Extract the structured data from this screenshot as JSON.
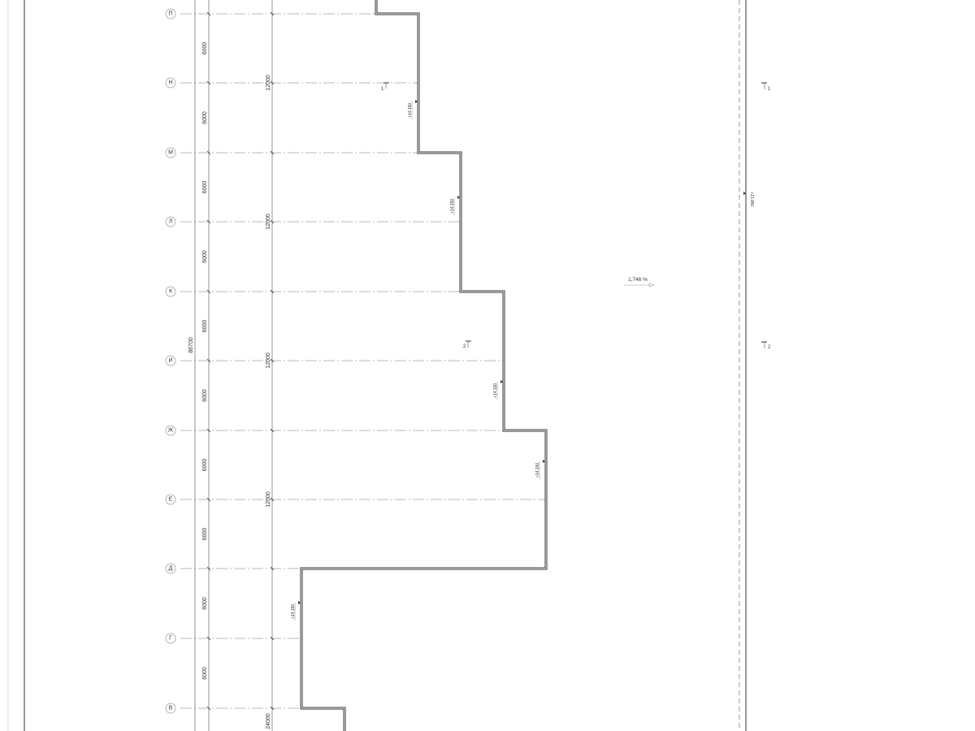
{
  "drawing": {
    "grid_axes": [
      "П",
      "Н",
      "М",
      "Л",
      "К",
      "И",
      "Ж",
      "Е",
      "Д",
      "Г",
      "В"
    ],
    "dimensions": {
      "overall": "86700",
      "bay": "6000",
      "pairs": [
        "12000",
        "12000",
        "12000",
        "12000"
      ],
      "bottom": "24000"
    },
    "spot_elevations": [
      "+14.150",
      "+14.150",
      "+14.150",
      "+14.150",
      "+14.150"
    ],
    "right_elevation": "+13.950",
    "section_marks": [
      "1",
      "2"
    ],
    "slope": "1,746 %"
  }
}
